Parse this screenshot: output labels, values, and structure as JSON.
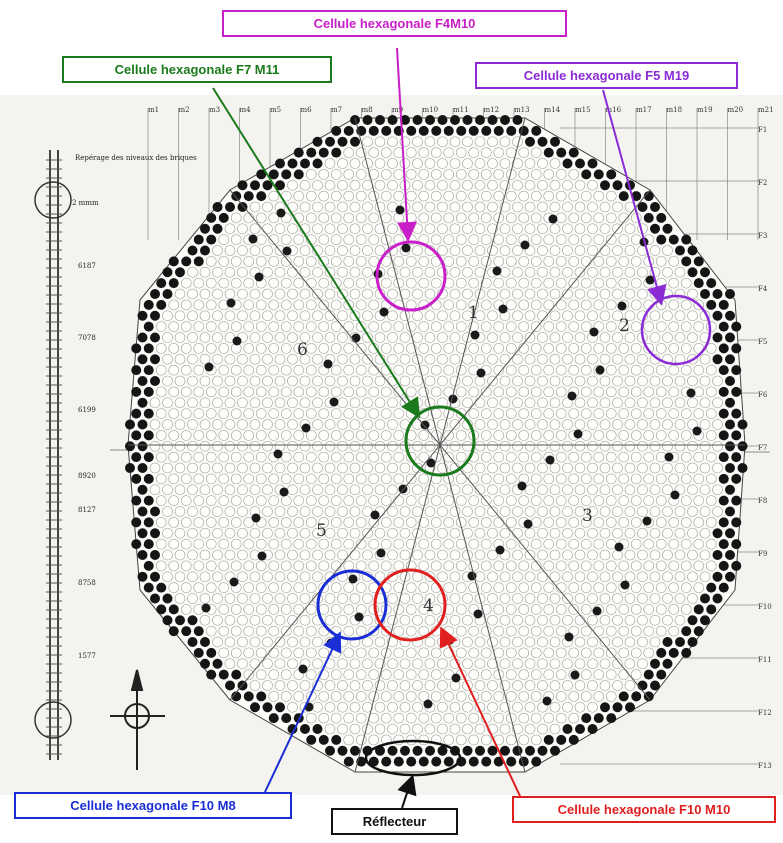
{
  "labels": {
    "f4m10": "Cellule hexagonale F4M10",
    "f7m11": "Cellule hexagonale F7 M11",
    "f5m19": "Cellule hexagonale F5 M19",
    "f10m8": "Cellule hexagonale F10 M8",
    "f10m10": "Cellule hexagonale F10 M10",
    "reflecteur": "Réflecteur"
  },
  "column_labels": [
    "m1",
    "m2",
    "m3",
    "m4",
    "m5",
    "m6",
    "m7",
    "m8",
    "m9",
    "m10",
    "m11",
    "m12",
    "m13",
    "m14",
    "m15",
    "m16",
    "m17",
    "m18",
    "m19",
    "m20",
    "m21"
  ],
  "row_labels": [
    "F1",
    "F2",
    "F3",
    "F4",
    "F5",
    "F6",
    "F7",
    "F8",
    "F9",
    "F10",
    "F11",
    "F12",
    "F13"
  ],
  "sector_numbers": [
    "1",
    "2",
    "3",
    "4",
    "5",
    "6"
  ],
  "scale_labels": [
    "Repérage des niveaux des briques",
    "2 mmm",
    "6187",
    "7078",
    "6199",
    "8920",
    "8127",
    "8758",
    "1577"
  ],
  "colors": {
    "magenta": "#c81fc8",
    "green": "#1b7a1b",
    "purple": "#8a2bd6",
    "blue": "#1a2ed6",
    "red": "#e01f1f",
    "black": "#111111"
  }
}
